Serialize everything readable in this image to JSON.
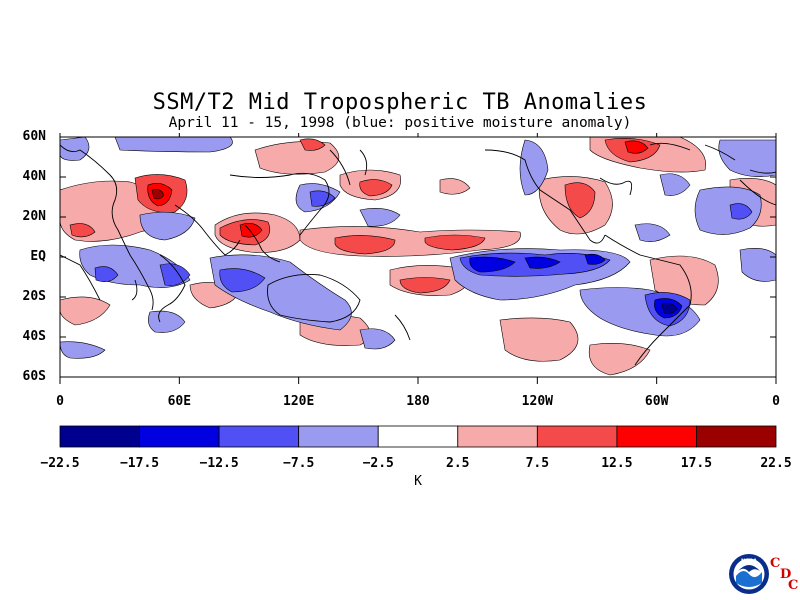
{
  "map": {
    "title": "SSM/T2 Mid Tropospheric TB Anomalies",
    "subtitle": "April 11 - 15, 1998 (blue: positive moisture anomaly)",
    "lat_labels": [
      {
        "label": "60N",
        "lat": 60
      },
      {
        "label": "40N",
        "lat": 40
      },
      {
        "label": "20N",
        "lat": 20
      },
      {
        "label": "EQ",
        "lat": 0
      },
      {
        "label": "20S",
        "lat": -20
      },
      {
        "label": "40S",
        "lat": -40
      },
      {
        "label": "60S",
        "lat": -60
      }
    ],
    "lon_labels": [
      {
        "label": "0",
        "lon": 0
      },
      {
        "label": "60E",
        "lon": 60
      },
      {
        "label": "120E",
        "lon": 120
      },
      {
        "label": "180",
        "lon": 180
      },
      {
        "label": "120W",
        "lon": 240
      },
      {
        "label": "60W",
        "lon": 300
      },
      {
        "label": "0",
        "lon": 360
      }
    ],
    "lon_range": [
      0,
      360
    ],
    "lat_range": [
      -60,
      60
    ]
  },
  "colorbar": {
    "units": "K",
    "levels": [
      "-22.5",
      "-17.5",
      "-12.5",
      "-7.5",
      "-2.5",
      "2.5",
      "7.5",
      "12.5",
      "17.5",
      "22.5"
    ],
    "colors": [
      "#00008f",
      "#0000e0",
      "#5050f5",
      "#9a9af0",
      "#ffffff",
      "#f7aaaa",
      "#f54a4a",
      "#ff0000",
      "#9a0000"
    ]
  },
  "logo": {
    "text": "NOAA",
    "letters": [
      "C",
      "D",
      "C"
    ]
  }
}
